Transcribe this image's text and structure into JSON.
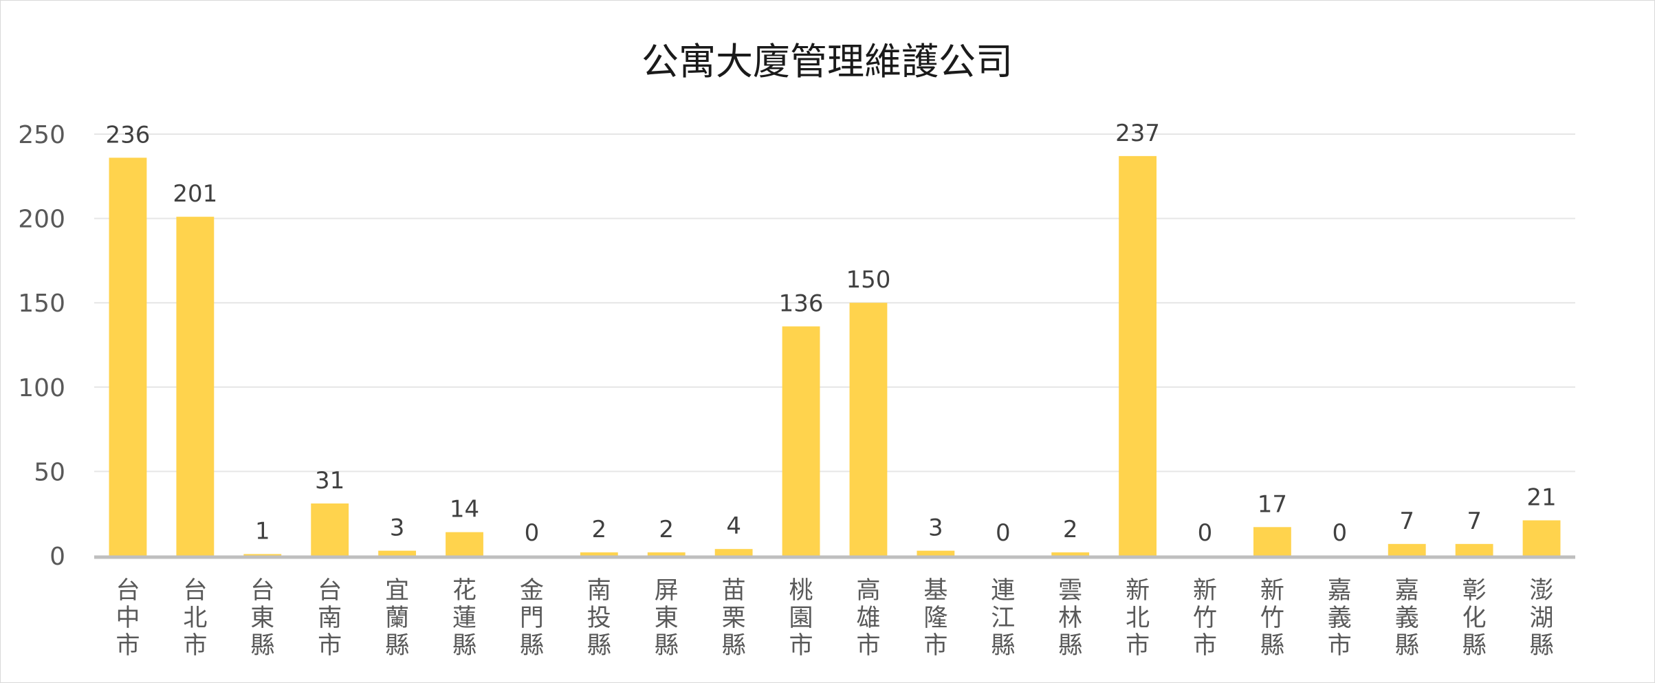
{
  "chart_data": {
    "type": "bar",
    "title": "公寓大廈管理維護公司",
    "xlabel": "",
    "ylabel": "",
    "ylim": [
      0,
      250
    ],
    "yticks": [
      0,
      50,
      100,
      150,
      200,
      250
    ],
    "grid": true,
    "legend": "none",
    "bar_color": "#FFD34D",
    "categories": [
      "台中市",
      "台北市",
      "台東縣",
      "台南市",
      "宜蘭縣",
      "花蓮縣",
      "金門縣",
      "南投縣",
      "屏東縣",
      "苗栗縣",
      "桃園市",
      "高雄市",
      "基隆市",
      "連江縣",
      "雲林縣",
      "新北市",
      "新竹市",
      "新竹縣",
      "嘉義市",
      "嘉義縣",
      "彰化縣",
      "澎湖縣"
    ],
    "values": [
      236,
      201,
      1,
      31,
      3,
      14,
      0,
      2,
      2,
      4,
      136,
      150,
      3,
      0,
      2,
      237,
      0,
      17,
      0,
      7,
      7,
      21
    ]
  }
}
